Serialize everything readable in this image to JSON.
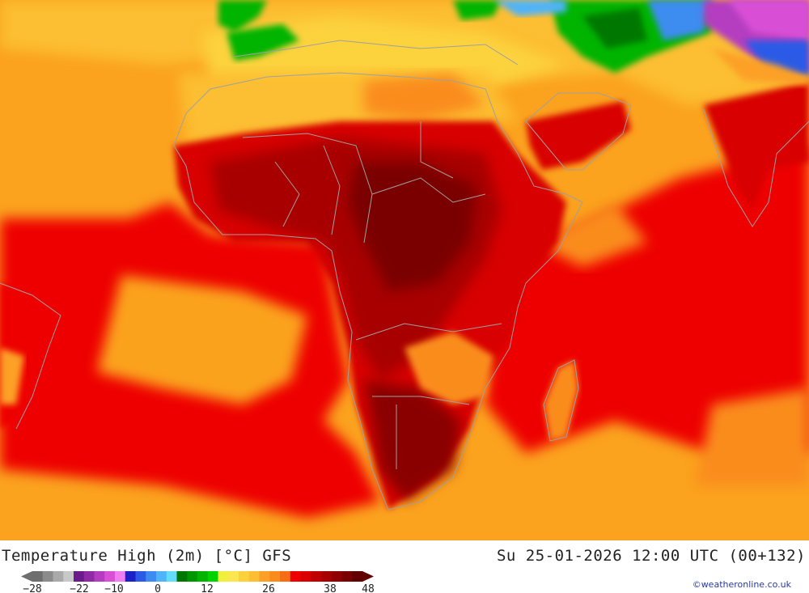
{
  "map": {
    "title": "Temperature High (2m) [°C] GFS",
    "datetime": "Su 25-01-2026 12:00 UTC (00+132)",
    "credit": "©weatheronline.co.uk",
    "legend": {
      "ticks": [
        "-28",
        "-22",
        "-10",
        "0",
        "12",
        "26",
        "38",
        "48"
      ],
      "colors": [
        "#6e6e6e",
        "#8c8c8c",
        "#aaaaaa",
        "#c8c8c8",
        "#6a1a8a",
        "#8f2aa5",
        "#b43cc0",
        "#d850d6",
        "#f07ef0",
        "#1a22c8",
        "#2a5ae6",
        "#3c8cf0",
        "#50b4f8",
        "#64dcfc",
        "#007800",
        "#009600",
        "#00b400",
        "#00d200",
        "#f0f03c",
        "#fce650",
        "#fcd23c",
        "#fcbe32",
        "#fca028",
        "#fa8c1e",
        "#f66e14",
        "#ee0000",
        "#d80000",
        "#c00000",
        "#a80000",
        "#900000",
        "#780000",
        "#600000"
      ]
    }
  }
}
